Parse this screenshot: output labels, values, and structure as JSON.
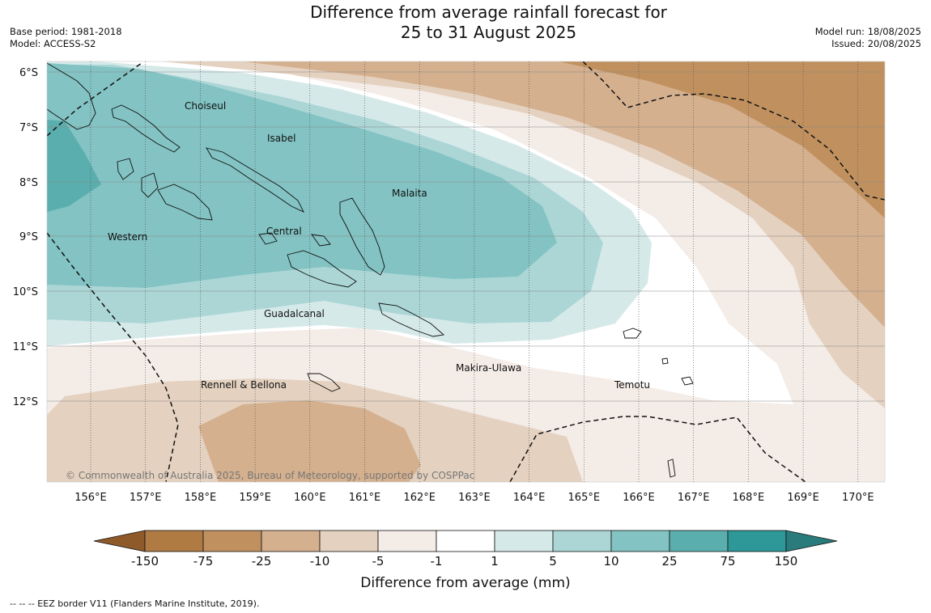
{
  "title": {
    "line1": "Difference from average rainfall forecast for",
    "line2": "25 to 31 August 2025"
  },
  "meta": {
    "base_period": "Base period: 1981-2018",
    "model": "Model: ACCESS-S2",
    "model_run": "Model run: 18/08/2025",
    "issued": "Issued: 20/08/2025"
  },
  "map": {
    "lat_labels": [
      "6°S",
      "7°S",
      "8°S",
      "9°S",
      "10°S",
      "11°S",
      "12°S"
    ],
    "lon_labels": [
      "156°E",
      "157°E",
      "158°E",
      "159°E",
      "160°E",
      "161°E",
      "162°E",
      "163°E",
      "164°E",
      "165°E",
      "166°E",
      "167°E",
      "168°E",
      "169°E",
      "170°E"
    ],
    "provinces": [
      "Choiseul",
      "Isabel",
      "Malaita",
      "Western",
      "Central",
      "Guadalcanal",
      "Makira-Ulawa",
      "Rennell & Bellona",
      "Temotu"
    ],
    "copyright": "© Commonwealth of Australia 2025, Bureau of Meteorology, supported by COSPPac"
  },
  "colorbar": {
    "title": "Difference from average (mm)",
    "labels": [
      "-150",
      "-75",
      "-25",
      "-10",
      "-5",
      "-1",
      "1",
      "5",
      "10",
      "25",
      "75",
      "150"
    ],
    "colors": [
      "#8e5a2a",
      "#b07a43",
      "#c0915f",
      "#d4b08e",
      "#e4d1bf",
      "#f4ece7",
      "#ffffff",
      "#d6e9e9",
      "#acd6d6",
      "#83c3c3",
      "#5baeae",
      "#2e9797",
      "#2a7b7b"
    ]
  },
  "footer": {
    "eez_note": "--  --  -- EEZ border V11 (Flanders Marine Institute, 2019)."
  }
}
